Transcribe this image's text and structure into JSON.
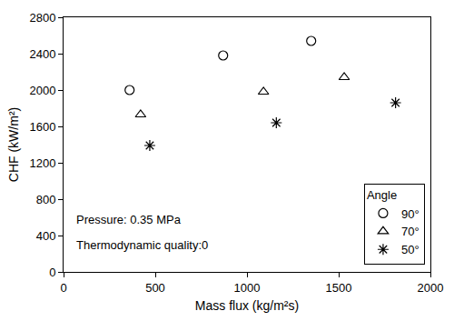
{
  "chart_data": {
    "type": "scatter",
    "x_label": "Mass flux (kg/m²s)",
    "y_label": "CHF (kW/m²)",
    "xlim": [
      0,
      2000
    ],
    "xticks": [
      0,
      500,
      1000,
      1500,
      2000
    ],
    "ylim": [
      0,
      2800
    ],
    "yticks": [
      0,
      400,
      800,
      1200,
      1600,
      2000,
      2400,
      2800
    ],
    "grid": false,
    "legend": "lower right",
    "legend_title": "Angle",
    "annotations": [
      "Pressure: 0.35 MPa",
      "Thermodynamic quality:0"
    ],
    "series": [
      {
        "name": "90°",
        "color": "#000000",
        "marker": "circle",
        "x": [
          360,
          870,
          1350
        ],
        "values": [
          2000,
          2380,
          2540
        ]
      },
      {
        "name": "70°",
        "color": "#000000",
        "marker": "triangle",
        "x": [
          420,
          1090,
          1530
        ],
        "values": [
          1730,
          1980,
          2140
        ]
      },
      {
        "name": "50°",
        "color": "#000000",
        "marker": "asterisk",
        "x": [
          470,
          1160,
          1810
        ],
        "values": [
          1390,
          1640,
          1860
        ]
      }
    ]
  }
}
